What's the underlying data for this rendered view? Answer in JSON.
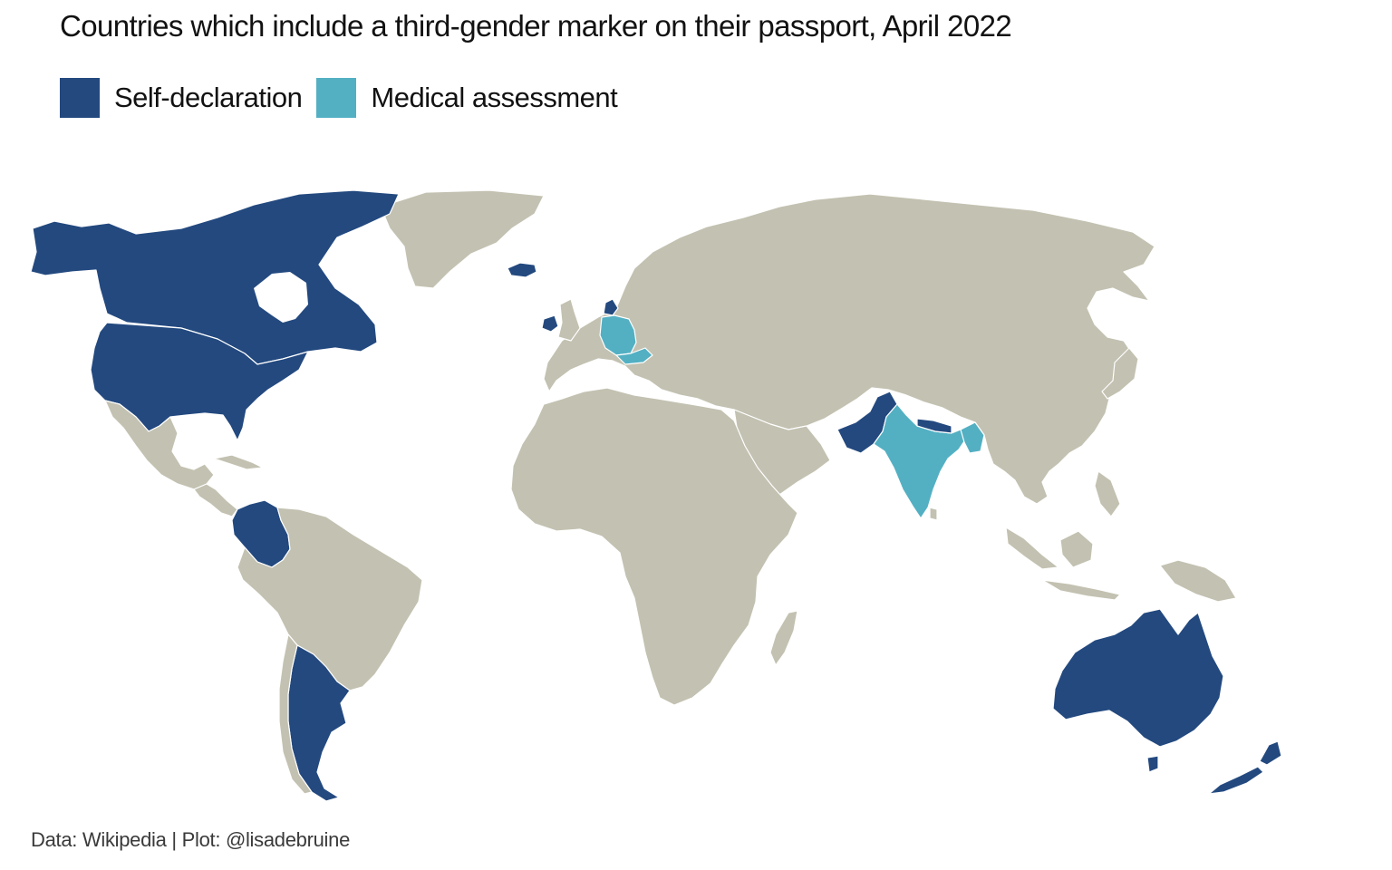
{
  "title": "Countries which include a third-gender marker on their passport, April 2022",
  "legend": {
    "items": [
      {
        "label": "Self-declaration",
        "color": "#23497f"
      },
      {
        "label": "Medical assessment",
        "color": "#53b0c3"
      }
    ]
  },
  "caption": "Data: Wikipedia | Plot: @lisadebruine",
  "colors": {
    "self_declaration": "#23497f",
    "medical_assessment": "#53b0c3",
    "other": "#c3c1b1",
    "border": "#ffffff",
    "background": "#ffffff"
  },
  "map": {
    "self_declaration": [
      "Canada",
      "United States",
      "Iceland",
      "Ireland",
      "Denmark",
      "Colombia",
      "Argentina",
      "Pakistan",
      "Nepal",
      "Australia",
      "New Zealand"
    ],
    "medical_assessment": [
      "Germany",
      "Austria",
      "India",
      "Bangladesh"
    ]
  }
}
